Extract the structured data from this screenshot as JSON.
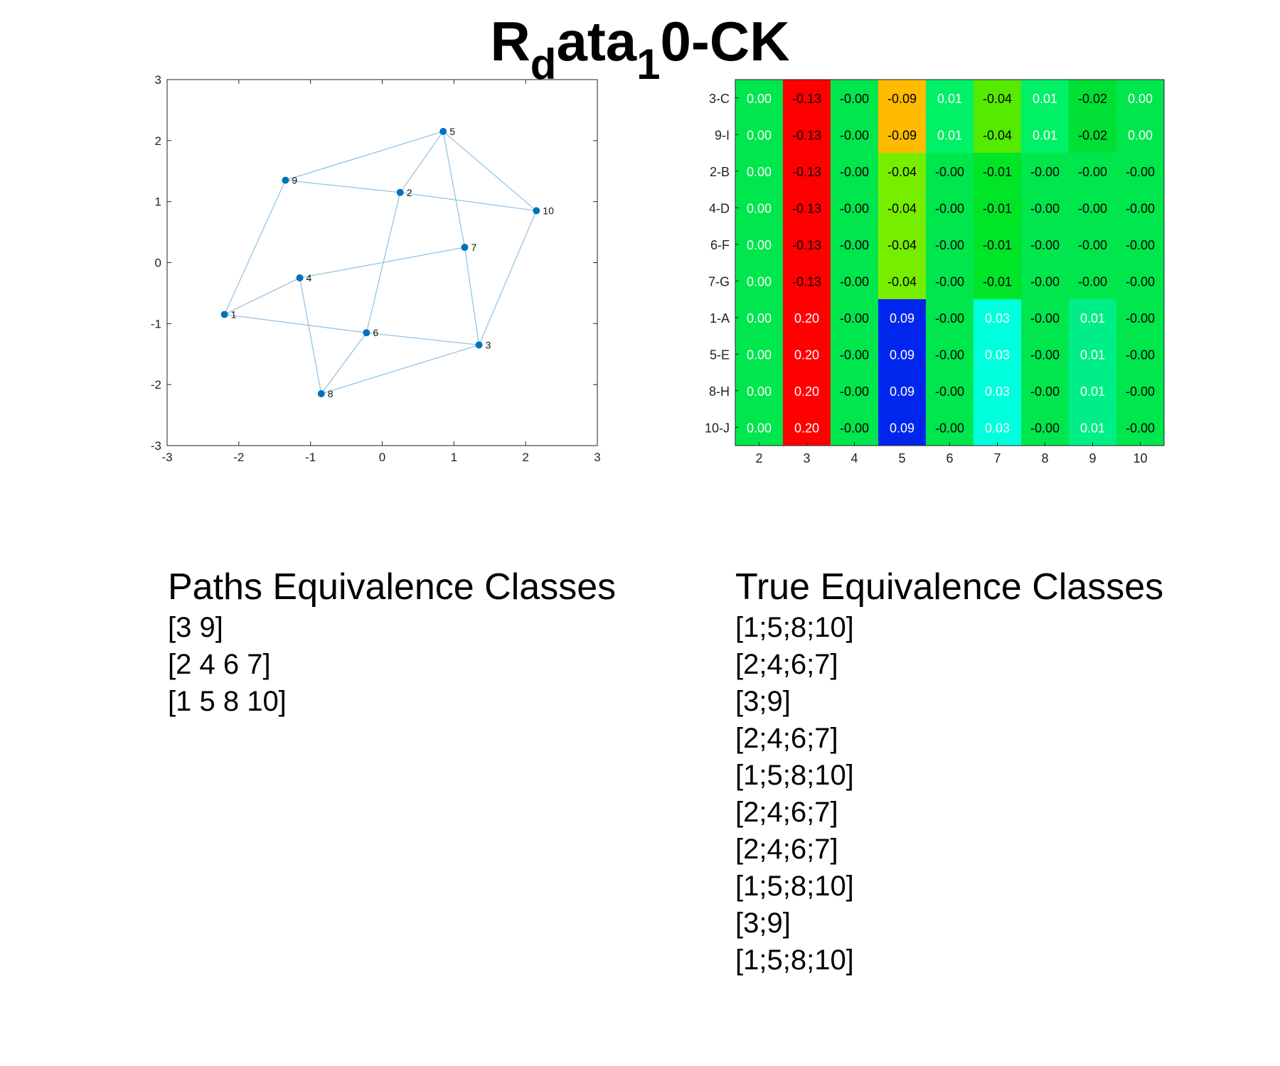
{
  "title": {
    "main": "R",
    "sub1": "d",
    "mid": "ata",
    "sub2": "1",
    "tail": "0-CK"
  },
  "chart_data": [
    {
      "type": "scatter",
      "title": "",
      "xlabel": "",
      "ylabel": "",
      "xlim": [
        -3,
        3
      ],
      "ylim": [
        -3,
        3
      ],
      "xticks": [
        "-3",
        "-2",
        "-1",
        "0",
        "1",
        "2",
        "3"
      ],
      "yticks": [
        "3",
        "2",
        "1",
        "0",
        "-1",
        "-2",
        "-3"
      ],
      "grid": false,
      "colors": {
        "point": "#0072bd",
        "edge": "#8fc0e0"
      },
      "nodes": [
        {
          "id": "1",
          "x": -2.2,
          "y": -0.85
        },
        {
          "id": "2",
          "x": 0.25,
          "y": 1.15
        },
        {
          "id": "3",
          "x": 1.35,
          "y": -1.35
        },
        {
          "id": "4",
          "x": -1.15,
          "y": -0.25
        },
        {
          "id": "5",
          "x": 0.85,
          "y": 2.15
        },
        {
          "id": "6",
          "x": -0.22,
          "y": -1.15
        },
        {
          "id": "7",
          "x": 1.15,
          "y": 0.25
        },
        {
          "id": "8",
          "x": -0.85,
          "y": -2.15
        },
        {
          "id": "9",
          "x": -1.35,
          "y": 1.35
        },
        {
          "id": "10",
          "x": 2.15,
          "y": 0.85
        }
      ],
      "edges": [
        [
          "9",
          "5"
        ],
        [
          "9",
          "2"
        ],
        [
          "9",
          "1"
        ],
        [
          "5",
          "2"
        ],
        [
          "5",
          "7"
        ],
        [
          "5",
          "10"
        ],
        [
          "2",
          "10"
        ],
        [
          "2",
          "6"
        ],
        [
          "10",
          "3"
        ],
        [
          "4",
          "7"
        ],
        [
          "4",
          "1"
        ],
        [
          "4",
          "8"
        ],
        [
          "1",
          "6"
        ],
        [
          "6",
          "3"
        ],
        [
          "6",
          "8"
        ],
        [
          "8",
          "3"
        ],
        [
          "7",
          "3"
        ]
      ]
    },
    {
      "type": "heatmap",
      "title": "",
      "xlabel": "",
      "ylabel": "",
      "columns": [
        "2",
        "3",
        "4",
        "5",
        "6",
        "7",
        "8",
        "9",
        "10"
      ],
      "rows": [
        "3-C",
        "9-I",
        "2-B",
        "4-D",
        "6-F",
        "7-G",
        "1-A",
        "5-E",
        "8-H",
        "10-J"
      ],
      "values": [
        [
          "0.00",
          "-0.13",
          "-0.00",
          "-0.09",
          "0.01",
          "-0.04",
          "0.01",
          "-0.02",
          "0.00"
        ],
        [
          "0.00",
          "-0.13",
          "-0.00",
          "-0.09",
          "0.01",
          "-0.04",
          "0.01",
          "-0.02",
          "0.00"
        ],
        [
          "0.00",
          "-0.13",
          "-0.00",
          "-0.04",
          "-0.00",
          "-0.01",
          "-0.00",
          "-0.00",
          "-0.00"
        ],
        [
          "0.00",
          "-0.13",
          "-0.00",
          "-0.04",
          "-0.00",
          "-0.01",
          "-0.00",
          "-0.00",
          "-0.00"
        ],
        [
          "0.00",
          "-0.13",
          "-0.00",
          "-0.04",
          "-0.00",
          "-0.01",
          "-0.00",
          "-0.00",
          "-0.00"
        ],
        [
          "0.00",
          "-0.13",
          "-0.00",
          "-0.04",
          "-0.00",
          "-0.01",
          "-0.00",
          "-0.00",
          "-0.00"
        ],
        [
          "0.00",
          "0.20",
          "-0.00",
          "0.09",
          "-0.00",
          "0.03",
          "-0.00",
          "0.01",
          "-0.00"
        ],
        [
          "0.00",
          "0.20",
          "-0.00",
          "0.09",
          "-0.00",
          "0.03",
          "-0.00",
          "0.01",
          "-0.00"
        ],
        [
          "0.00",
          "0.20",
          "-0.00",
          "0.09",
          "-0.00",
          "0.03",
          "-0.00",
          "0.01",
          "-0.00"
        ],
        [
          "0.00",
          "0.20",
          "-0.00",
          "0.09",
          "-0.00",
          "0.03",
          "-0.00",
          "0.01",
          "-0.00"
        ]
      ],
      "cell_colors": [
        [
          "#00e64d",
          "#ff0000",
          "#00e64d",
          "#ffbb00",
          "#00f066",
          "#55ea00",
          "#00f066",
          "#00e034",
          "#00e64d"
        ],
        [
          "#00e64d",
          "#ff0000",
          "#00e64d",
          "#ffbb00",
          "#00f066",
          "#55ea00",
          "#00f066",
          "#00e034",
          "#00e64d"
        ],
        [
          "#00e64d",
          "#ff0000",
          "#00e64d",
          "#77ee00",
          "#00e64d",
          "#00e626",
          "#00e64d",
          "#00e64d",
          "#00e64d"
        ],
        [
          "#00e64d",
          "#ff0000",
          "#00e64d",
          "#77ee00",
          "#00e64d",
          "#00e626",
          "#00e64d",
          "#00e64d",
          "#00e64d"
        ],
        [
          "#00e64d",
          "#ff0000",
          "#00e64d",
          "#77ee00",
          "#00e64d",
          "#00e626",
          "#00e64d",
          "#00e64d",
          "#00e64d"
        ],
        [
          "#00e64d",
          "#ff0000",
          "#00e64d",
          "#77ee00",
          "#00e64d",
          "#00e626",
          "#00e64d",
          "#00e64d",
          "#00e64d"
        ],
        [
          "#00e64d",
          "#ff0000",
          "#00e64d",
          "#0026ee",
          "#00e64d",
          "#00ffdd",
          "#00e64d",
          "#00ee88",
          "#00e64d"
        ],
        [
          "#00e64d",
          "#ff0000",
          "#00e64d",
          "#0026ee",
          "#00e64d",
          "#00ffdd",
          "#00e64d",
          "#00ee88",
          "#00e64d"
        ],
        [
          "#00e64d",
          "#ff0000",
          "#00e64d",
          "#0026ee",
          "#00e64d",
          "#00ffdd",
          "#00e64d",
          "#00ee88",
          "#00e64d"
        ],
        [
          "#00e64d",
          "#ff0000",
          "#00e64d",
          "#0026ee",
          "#00e64d",
          "#00ffdd",
          "#00e64d",
          "#00ee88",
          "#00e64d"
        ]
      ],
      "text_colors": [
        [
          "#ffffff",
          "#000000",
          "#000000",
          "#000000",
          "#ffffff",
          "#000000",
          "#ffffff",
          "#000000",
          "#ffffff"
        ],
        [
          "#ffffff",
          "#000000",
          "#000000",
          "#000000",
          "#ffffff",
          "#000000",
          "#ffffff",
          "#000000",
          "#ffffff"
        ],
        [
          "#ffffff",
          "#000000",
          "#000000",
          "#000000",
          "#000000",
          "#000000",
          "#000000",
          "#000000",
          "#000000"
        ],
        [
          "#ffffff",
          "#000000",
          "#000000",
          "#000000",
          "#000000",
          "#000000",
          "#000000",
          "#000000",
          "#000000"
        ],
        [
          "#ffffff",
          "#000000",
          "#000000",
          "#000000",
          "#000000",
          "#000000",
          "#000000",
          "#000000",
          "#000000"
        ],
        [
          "#ffffff",
          "#000000",
          "#000000",
          "#000000",
          "#000000",
          "#000000",
          "#000000",
          "#000000",
          "#000000"
        ],
        [
          "#ffffff",
          "#ffffff",
          "#000000",
          "#ffffff",
          "#000000",
          "#ffffff",
          "#000000",
          "#ffffff",
          "#000000"
        ],
        [
          "#ffffff",
          "#ffffff",
          "#000000",
          "#ffffff",
          "#000000",
          "#ffffff",
          "#000000",
          "#ffffff",
          "#000000"
        ],
        [
          "#ffffff",
          "#ffffff",
          "#000000",
          "#ffffff",
          "#000000",
          "#ffffff",
          "#000000",
          "#ffffff",
          "#000000"
        ],
        [
          "#ffffff",
          "#ffffff",
          "#000000",
          "#ffffff",
          "#000000",
          "#ffffff",
          "#000000",
          "#ffffff",
          "#000000"
        ]
      ]
    }
  ],
  "paths_equivalence": {
    "title": "Paths Equivalence Classes",
    "items": [
      "[3 9]",
      "[2 4 6 7]",
      "[1 5 8 10]"
    ]
  },
  "true_equivalence": {
    "title": "True Equivalence Classes",
    "items": [
      "[1;5;8;10]",
      "[2;4;6;7]",
      "[3;9]",
      "[2;4;6;7]",
      "[1;5;8;10]",
      "[2;4;6;7]",
      "[2;4;6;7]",
      "[1;5;8;10]",
      "[3;9]",
      "[1;5;8;10]"
    ]
  }
}
